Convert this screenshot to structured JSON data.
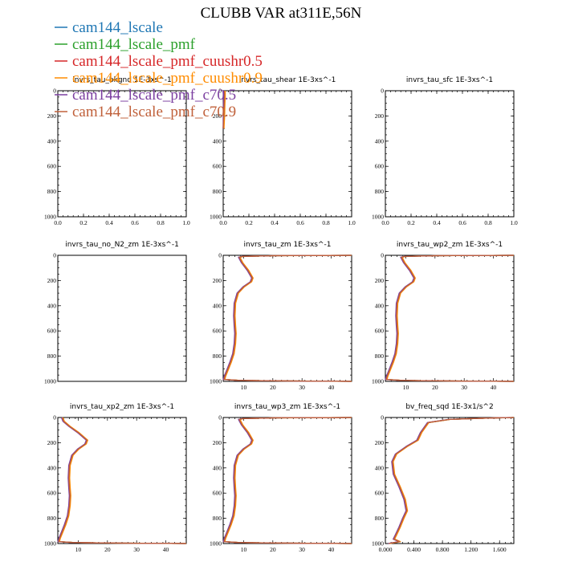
{
  "figure": {
    "title": "CLUBB VAR at311E,56N"
  },
  "legend": [
    {
      "name": "cam144_lscale",
      "color": "#1f77b4"
    },
    {
      "name": "cam144_lscale_pmf",
      "color": "#2ca02c"
    },
    {
      "name": "cam144_lscale_pmf_cuushr0.5",
      "color": "#d62728"
    },
    {
      "name": "cam144_lscale_pmf_cuushr0.9",
      "color": "#ff8c00"
    },
    {
      "name": "cam144_lscale_pmf_c70.5",
      "color": "#7b3fa0"
    },
    {
      "name": "cam144_lscale_pmf_c70.9",
      "color": "#c0603a"
    }
  ],
  "chart_data": [
    {
      "type": "line",
      "title": "invrs_tau_bkgnd   1E-3xs^-1",
      "xlim": [
        0,
        1
      ],
      "ylim": [
        1000,
        0
      ],
      "xticks": [
        "0.0",
        "0.2",
        "0.4",
        "0.6",
        "0.8",
        "1.0"
      ],
      "yticks": [
        "0",
        "200",
        "400",
        "600",
        "800",
        "1000"
      ],
      "profile": []
    },
    {
      "type": "line",
      "title": "invrs_tau_shear   1E-3xs^-1",
      "xlim": [
        0,
        1
      ],
      "ylim": [
        1000,
        0
      ],
      "xticks": [
        "0.0",
        "0.2",
        "0.4",
        "0.6",
        "0.8",
        "1.0"
      ],
      "yticks": [
        "0",
        "200",
        "400",
        "600",
        "800",
        "1000"
      ],
      "profile": [
        [
          0.01,
          0
        ],
        [
          0.01,
          50
        ],
        [
          0.008,
          100
        ],
        [
          0.005,
          200
        ],
        [
          0.0,
          300
        ]
      ]
    },
    {
      "type": "line",
      "title": "invrs_tau_sfc   1E-3xs^-1",
      "xlim": [
        0,
        1
      ],
      "ylim": [
        1000,
        0
      ],
      "xticks": [
        "0.0",
        "0.2",
        "0.4",
        "0.6",
        "0.8",
        "1.0"
      ],
      "yticks": [
        "0",
        "200",
        "400",
        "600",
        "800",
        "1000"
      ],
      "profile": []
    },
    {
      "type": "line",
      "title": "invrs_tau_no_N2_zm   1E-3xs^-1",
      "xlim": [
        0,
        1
      ],
      "ylim": [
        1000,
        0
      ],
      "xticks": [],
      "yticks": [
        "0",
        "200",
        "400",
        "600",
        "800",
        "1000"
      ],
      "profile": []
    },
    {
      "type": "line",
      "title": "invrs_tau_zm   1E-3xs^-1",
      "xlim": [
        3,
        47
      ],
      "ylim": [
        1000,
        0
      ],
      "xticks": [
        "10",
        "20",
        "30",
        "40"
      ],
      "yticks": [
        "0",
        "200",
        "400",
        "600",
        "800",
        "1000"
      ],
      "profile": [
        [
          47,
          0
        ],
        [
          20,
          3
        ],
        [
          10,
          8
        ],
        [
          8.5,
          15
        ],
        [
          9.5,
          60
        ],
        [
          11.5,
          120
        ],
        [
          13,
          180
        ],
        [
          12.5,
          210
        ],
        [
          10,
          250
        ],
        [
          8,
          300
        ],
        [
          7,
          380
        ],
        [
          6.8,
          480
        ],
        [
          7.0,
          560
        ],
        [
          7.2,
          620
        ],
        [
          7.0,
          700
        ],
        [
          6.5,
          780
        ],
        [
          5.5,
          850
        ],
        [
          4.3,
          920
        ],
        [
          3.6,
          960
        ],
        [
          3.3,
          985
        ],
        [
          8,
          992
        ],
        [
          20,
          996
        ],
        [
          47,
          1000
        ]
      ]
    },
    {
      "type": "line",
      "title": "invrs_tau_wp2_zm   1E-3xs^-1",
      "xlim": [
        3,
        47
      ],
      "ylim": [
        1000,
        0
      ],
      "xticks": [
        "10",
        "20",
        "30",
        "40"
      ],
      "yticks": [
        "0",
        "200",
        "400",
        "600",
        "800",
        "1000"
      ],
      "profile": [
        [
          47,
          0
        ],
        [
          20,
          3
        ],
        [
          10,
          8
        ],
        [
          8.5,
          15
        ],
        [
          9.5,
          60
        ],
        [
          11.5,
          120
        ],
        [
          13,
          180
        ],
        [
          12.5,
          210
        ],
        [
          10,
          250
        ],
        [
          8,
          300
        ],
        [
          7,
          380
        ],
        [
          6.8,
          480
        ],
        [
          7.0,
          560
        ],
        [
          7.2,
          620
        ],
        [
          7.0,
          700
        ],
        [
          6.5,
          780
        ],
        [
          5.5,
          850
        ],
        [
          4.3,
          920
        ],
        [
          3.6,
          960
        ],
        [
          3.3,
          985
        ],
        [
          8,
          992
        ],
        [
          20,
          996
        ],
        [
          47,
          1000
        ]
      ]
    },
    {
      "type": "line",
      "title": "invrs_tau_xp2_zm   1E-3xs^-1",
      "xlim": [
        3,
        47
      ],
      "ylim": [
        1000,
        0
      ],
      "xticks": [
        "10",
        "20",
        "30",
        "40"
      ],
      "yticks": [
        "0",
        "200",
        "400",
        "600",
        "800",
        "1000"
      ],
      "profile": [
        [
          4.5,
          0
        ],
        [
          5,
          30
        ],
        [
          7,
          70
        ],
        [
          10,
          120
        ],
        [
          13,
          180
        ],
        [
          12.5,
          210
        ],
        [
          10,
          250
        ],
        [
          8,
          300
        ],
        [
          7,
          380
        ],
        [
          6.8,
          480
        ],
        [
          7.0,
          560
        ],
        [
          7.2,
          620
        ],
        [
          7.0,
          700
        ],
        [
          6.5,
          780
        ],
        [
          5.5,
          850
        ],
        [
          4.3,
          920
        ],
        [
          3.6,
          960
        ],
        [
          3.3,
          985
        ],
        [
          8,
          992
        ],
        [
          20,
          996
        ],
        [
          47,
          1000
        ]
      ]
    },
    {
      "type": "line",
      "title": "invrs_tau_wp3_zm   1E-3xs^-1",
      "xlim": [
        3,
        47
      ],
      "ylim": [
        1000,
        0
      ],
      "xticks": [
        "10",
        "20",
        "30",
        "40"
      ],
      "yticks": [
        "0",
        "200",
        "400",
        "600",
        "800",
        "1000"
      ],
      "profile": [
        [
          47,
          0
        ],
        [
          20,
          3
        ],
        [
          10,
          8
        ],
        [
          8.5,
          15
        ],
        [
          9.5,
          60
        ],
        [
          11.5,
          120
        ],
        [
          13,
          180
        ],
        [
          12.5,
          210
        ],
        [
          10,
          250
        ],
        [
          8,
          300
        ],
        [
          7,
          380
        ],
        [
          6.8,
          480
        ],
        [
          7.0,
          560
        ],
        [
          7.2,
          620
        ],
        [
          7.0,
          700
        ],
        [
          6.5,
          780
        ],
        [
          5.5,
          850
        ],
        [
          4.3,
          920
        ],
        [
          3.6,
          960
        ],
        [
          3.3,
          985
        ],
        [
          8,
          992
        ],
        [
          20,
          996
        ],
        [
          47,
          1000
        ]
      ]
    },
    {
      "type": "line",
      "title": "bv_freq_sqd   1E-3x1/s^2",
      "xlim": [
        0,
        1.8
      ],
      "ylim": [
        1000,
        0
      ],
      "xticks": [
        "0.000",
        "0.400",
        "0.800",
        "1.200",
        "1.600"
      ],
      "yticks": [
        "0",
        "200",
        "400",
        "600",
        "800",
        "1000"
      ],
      "profile": [
        [
          1.8,
          0
        ],
        [
          1.4,
          5
        ],
        [
          0.9,
          15
        ],
        [
          0.6,
          40
        ],
        [
          0.5,
          120
        ],
        [
          0.45,
          180
        ],
        [
          0.3,
          230
        ],
        [
          0.15,
          290
        ],
        [
          0.1,
          350
        ],
        [
          0.12,
          450
        ],
        [
          0.2,
          550
        ],
        [
          0.27,
          650
        ],
        [
          0.3,
          740
        ],
        [
          0.25,
          800
        ],
        [
          0.2,
          870
        ],
        [
          0.15,
          930
        ],
        [
          0.12,
          965
        ],
        [
          0.2,
          985
        ],
        [
          0.1,
          995
        ],
        [
          0.05,
          1000
        ]
      ]
    }
  ]
}
